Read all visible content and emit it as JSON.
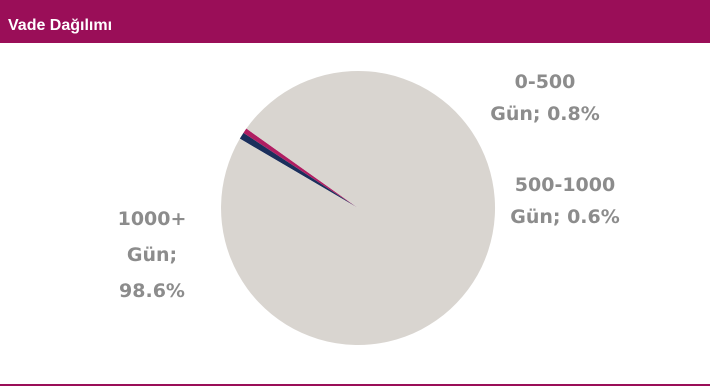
{
  "header": {
    "title": "Vade Dağılımı"
  },
  "colors": {
    "header_bg": "#9a0e58",
    "label_text": "#8c8c8c"
  },
  "chart_data": {
    "type": "pie",
    "title": "Vade Dağılımı",
    "categories": [
      "0-500 Gün",
      "500-1000 Gün",
      "1000+ Gün"
    ],
    "values": [
      0.8,
      0.6,
      98.6
    ],
    "unit": "%",
    "colors": [
      "#1b2f5c",
      "#b01e62",
      "#d9d5d0"
    ],
    "labels": [
      [
        "0-500",
        "Gün; 0.8%"
      ],
      [
        "500-1000",
        "Gün; 0.6%"
      ],
      [
        "1000+",
        "Gün;",
        "98.6%"
      ]
    ]
  }
}
